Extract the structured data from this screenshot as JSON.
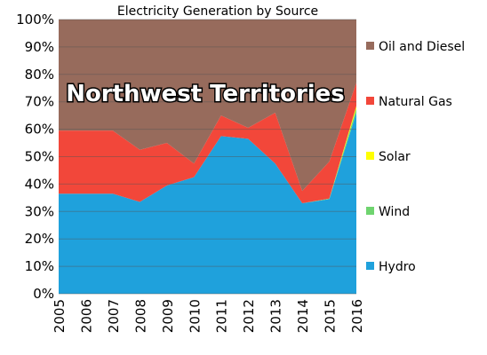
{
  "chart_data": {
    "type": "area",
    "title": "Electricity Generation by Source",
    "annotation": "Northwest Territories",
    "x": [
      "2005",
      "2006",
      "2007",
      "2008",
      "2009",
      "2010",
      "2011",
      "2012",
      "2013",
      "2014",
      "2015",
      "2016"
    ],
    "ylim": [
      0,
      100
    ],
    "yticks": [
      "0%",
      "10%",
      "20%",
      "30%",
      "40%",
      "50%",
      "60%",
      "70%",
      "80%",
      "90%",
      "100%"
    ],
    "stacked_percent": true,
    "grid": true,
    "legend_position": "right",
    "series": [
      {
        "name": "Hydro",
        "color": "#1fa1dc",
        "values": [
          36.5,
          36.5,
          36.5,
          33.5,
          39.5,
          42.5,
          57.5,
          56.5,
          47.5,
          33,
          34.5,
          66
        ]
      },
      {
        "name": "Wind",
        "color": "#6fd46f",
        "values": [
          0,
          0,
          0,
          0,
          0,
          0,
          0,
          0,
          0,
          0,
          0.2,
          1.5
        ]
      },
      {
        "name": "Solar",
        "color": "#ffff00",
        "values": [
          0,
          0,
          0,
          0,
          0,
          0,
          0,
          0,
          0,
          0,
          0,
          1
        ]
      },
      {
        "name": "Natural Gas",
        "color": "#f2473a",
        "values": [
          23,
          23,
          23,
          19,
          15.5,
          5,
          7.5,
          4,
          18.5,
          4.5,
          13.5,
          8.5
        ]
      },
      {
        "name": "Oil and Diesel",
        "color": "#976b5c",
        "values": [
          40.5,
          40.5,
          40.5,
          47.5,
          45,
          52.5,
          35,
          39.5,
          34,
          62.5,
          51.8,
          23
        ]
      }
    ]
  }
}
